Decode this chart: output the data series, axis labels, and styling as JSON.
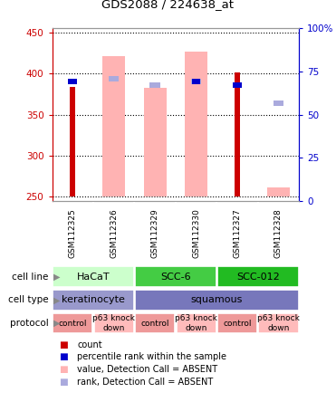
{
  "title": "GDS2088 / 224638_at",
  "samples": [
    "GSM112325",
    "GSM112326",
    "GSM112329",
    "GSM112330",
    "GSM112327",
    "GSM112328"
  ],
  "ylim_left": [
    245,
    455
  ],
  "ylim_right": [
    0,
    100
  ],
  "yticks_left": [
    250,
    300,
    350,
    400,
    450
  ],
  "yticks_right": [
    0,
    25,
    50,
    75,
    100
  ],
  "ytick_labels_right": [
    "0",
    "25",
    "50",
    "75",
    "100%"
  ],
  "bar_bottom": 250,
  "count_values": [
    384,
    0,
    0,
    0,
    401,
    0
  ],
  "count_color": "#cc0000",
  "percentile_values": [
    390,
    0,
    0,
    390,
    385,
    0
  ],
  "percentile_color": "#0000cc",
  "absent_value_values": [
    0,
    421,
    382,
    426,
    0,
    262
  ],
  "absent_value_color": "#ffb3b3",
  "absent_rank_values": [
    0,
    393,
    385,
    390,
    0,
    363
  ],
  "absent_rank_color": "#aaaadd",
  "bar_width": 0.55,
  "cell_line_groups": [
    {
      "label": "HaCaT",
      "span": [
        0,
        2
      ],
      "color": "#ccffcc"
    },
    {
      "label": "SCC-6",
      "span": [
        2,
        4
      ],
      "color": "#44cc44"
    },
    {
      "label": "SCC-012",
      "span": [
        4,
        6
      ],
      "color": "#22bb22"
    }
  ],
  "cell_type_groups": [
    {
      "label": "keratinocyte",
      "span": [
        0,
        2
      ],
      "color": "#9999cc"
    },
    {
      "label": "squamous",
      "span": [
        2,
        6
      ],
      "color": "#7777bb"
    }
  ],
  "protocol_groups": [
    {
      "label": "control",
      "span": [
        0,
        1
      ],
      "color": "#ee9999"
    },
    {
      "label": "p63 knock\ndown",
      "span": [
        1,
        2
      ],
      "color": "#ffbbbb"
    },
    {
      "label": "control",
      "span": [
        2,
        3
      ],
      "color": "#ee9999"
    },
    {
      "label": "p63 knock\ndown",
      "span": [
        3,
        4
      ],
      "color": "#ffbbbb"
    },
    {
      "label": "control",
      "span": [
        4,
        5
      ],
      "color": "#ee9999"
    },
    {
      "label": "p63 knock\ndown",
      "span": [
        5,
        6
      ],
      "color": "#ffbbbb"
    }
  ],
  "row_labels": [
    "cell line",
    "cell type",
    "protocol"
  ],
  "legend_items": [
    {
      "label": "count",
      "color": "#cc0000"
    },
    {
      "label": "percentile rank within the sample",
      "color": "#0000cc"
    },
    {
      "label": "value, Detection Call = ABSENT",
      "color": "#ffb3b3"
    },
    {
      "label": "rank, Detection Call = ABSENT",
      "color": "#aaaadd"
    }
  ],
  "bg_color": "#ffffff",
  "plot_bg_color": "#ffffff",
  "axis_left_color": "#cc0000",
  "axis_right_color": "#0000cc",
  "sample_bg_color": "#cccccc",
  "label_arrow_color": "#888888"
}
